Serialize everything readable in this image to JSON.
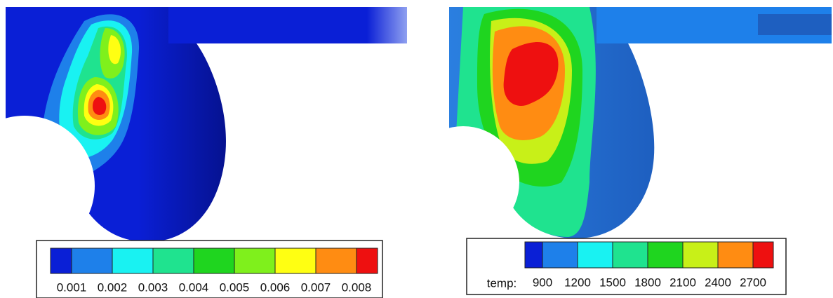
{
  "panels": [
    {
      "colorbar": {
        "label": null,
        "colors": [
          "#0a1fd6",
          "#1e80ea",
          "#19f2f2",
          "#1fe38f",
          "#1fd51f",
          "#7ff01c",
          "#ffff12",
          "#ff8c12",
          "#ee1010"
        ],
        "ticks": [
          "0.001",
          "0.002",
          "0.003",
          "0.004",
          "0.005",
          "0.006",
          "0.007",
          "0.008"
        ]
      }
    },
    {
      "colorbar": {
        "label": "temp:",
        "colors": [
          "#0a1fd6",
          "#1e80ea",
          "#19f2f2",
          "#1fe38f",
          "#1fd51f",
          "#c8f018",
          "#ff8c12",
          "#ee1010"
        ],
        "ticks": [
          "900",
          "1200",
          "1500",
          "1800",
          "2100",
          "2400",
          "2700"
        ]
      }
    }
  ]
}
